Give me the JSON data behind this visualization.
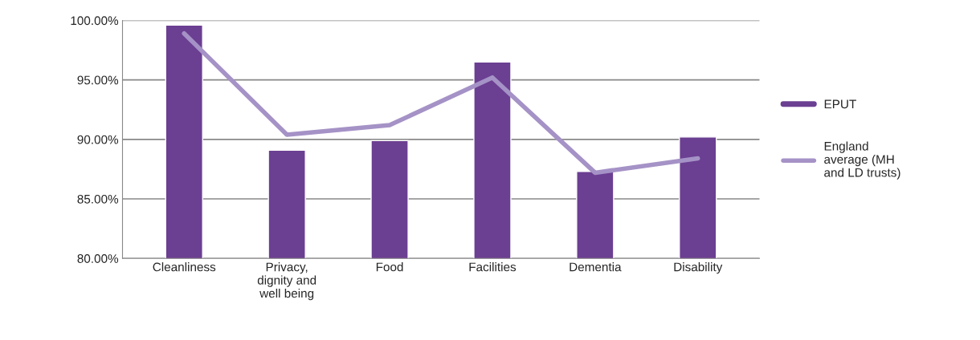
{
  "chart_data": {
    "type": "bar",
    "categories": [
      "Cleanliness",
      "Privacy,\ndignity and\nwell being",
      "Food",
      "Facilities",
      "Dementia",
      "Disability"
    ],
    "series": [
      {
        "name": "EPUT",
        "color": "#6b3f92",
        "values": [
          99.6,
          89.1,
          89.9,
          96.5,
          87.3,
          90.2
        ]
      },
      {
        "name": "England\naverage (MH\nand LD trusts)",
        "type": "line",
        "color": "#a592c6",
        "values": [
          98.9,
          90.4,
          91.2,
          95.2,
          87.2,
          88.4
        ]
      }
    ],
    "ylim": [
      80,
      100
    ],
    "yticks": [
      {
        "value": 80,
        "label": "80.00%"
      },
      {
        "value": 85,
        "label": "85.00%"
      },
      {
        "value": 90,
        "label": "90.00%"
      },
      {
        "value": 95,
        "label": "95.00%"
      },
      {
        "value": 100,
        "label": "100.00%"
      }
    ],
    "grid": "y",
    "legend": "right"
  }
}
